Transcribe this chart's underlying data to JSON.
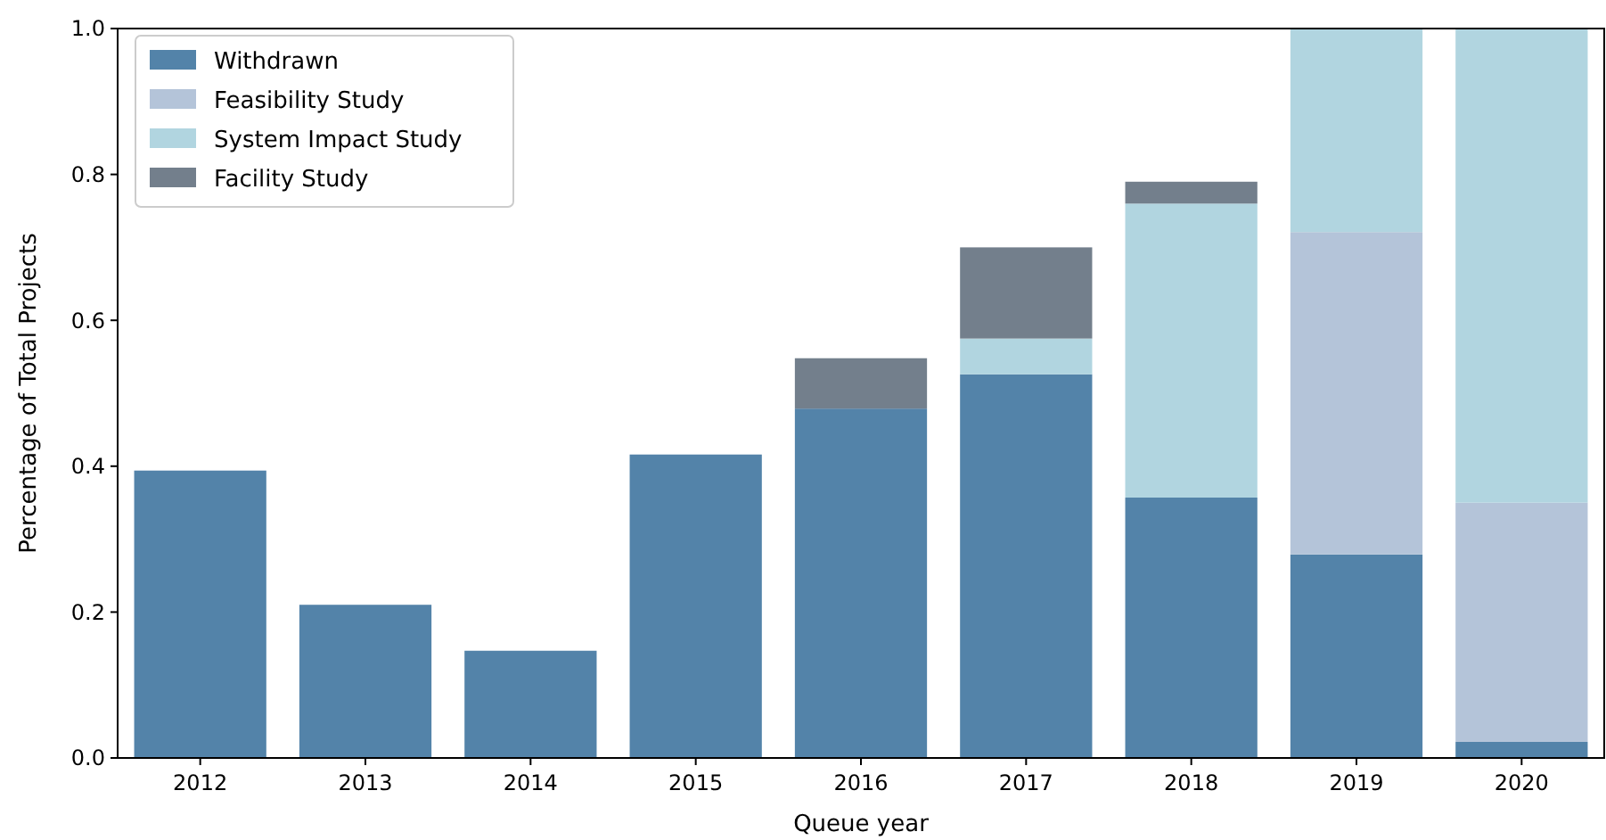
{
  "chart_data": {
    "type": "bar",
    "stacked": true,
    "xlabel": "Queue year",
    "ylabel": "Percentage of Total Projects",
    "categories": [
      "2012",
      "2013",
      "2014",
      "2015",
      "2016",
      "2017",
      "2018",
      "2019",
      "2020"
    ],
    "series": [
      {
        "name": "Withdrawn",
        "color": "#5383a9",
        "values": [
          0.394,
          0.21,
          0.147,
          0.416,
          0.479,
          0.526,
          0.357,
          0.279,
          0.022
        ]
      },
      {
        "name": "Feasibility Study",
        "color": "#b4c4d9",
        "values": [
          0,
          0,
          0,
          0,
          0,
          0,
          0,
          0.442,
          0.328
        ]
      },
      {
        "name": "System Impact Study",
        "color": "#b1d5e0",
        "values": [
          0,
          0,
          0,
          0,
          0,
          0.049,
          0.403,
          0.279,
          0.65
        ]
      },
      {
        "name": "Facility Study",
        "color": "#737f8c",
        "values": [
          0,
          0,
          0,
          0,
          0.069,
          0.125,
          0.03,
          0,
          0
        ]
      }
    ],
    "ylim": [
      0,
      1
    ],
    "yticks": [
      {
        "value": 0,
        "label": "0.0"
      },
      0.2,
      0.4,
      0.6,
      0.8,
      {
        "value": 1,
        "label": "1.0"
      }
    ],
    "grid": false,
    "legend": "top left"
  }
}
